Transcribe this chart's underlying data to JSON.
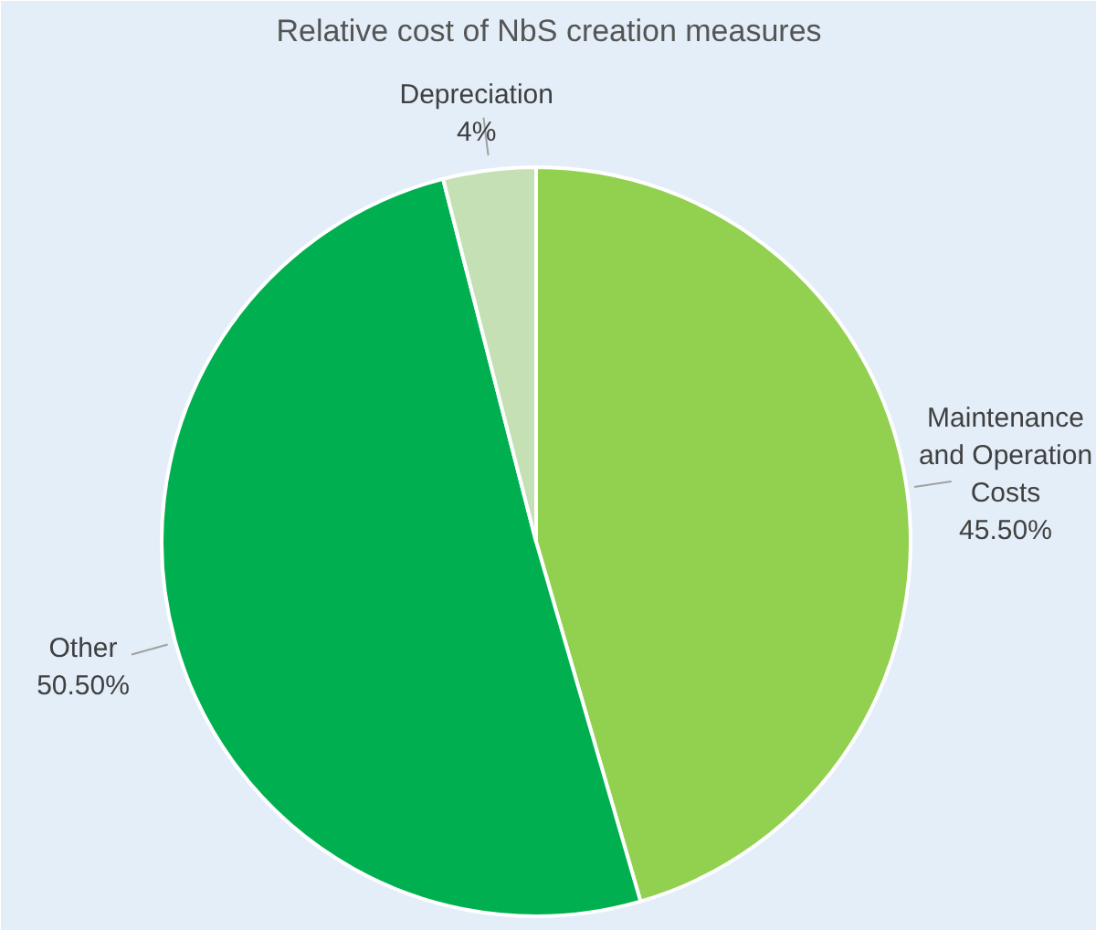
{
  "chart_data": {
    "type": "pie",
    "title": "Relative cost of NbS creation measures",
    "categories": [
      "Maintenance and Operation Costs",
      "Other",
      "Depreciation"
    ],
    "values": [
      45.5,
      50.5,
      4
    ],
    "colors": [
      "#92d050",
      "#00b050",
      "#c5e0b4"
    ],
    "value_labels": [
      "45.50%",
      "50.50%",
      "4%"
    ]
  }
}
